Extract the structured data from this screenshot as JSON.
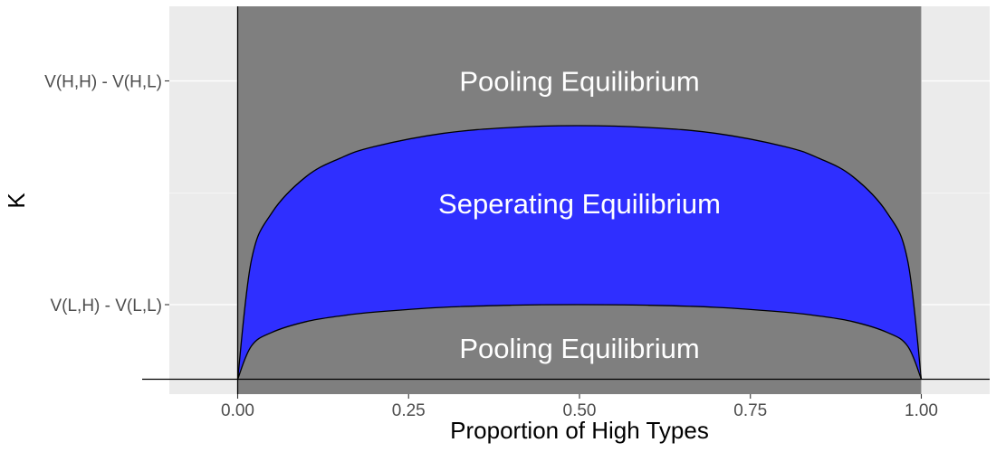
{
  "chart_data": {
    "type": "area",
    "xlabel": "Proportion of High Types",
    "ylabel": "K",
    "xlim": [
      -0.1,
      1.1
    ],
    "ylim": [
      -0.05,
      1.25
    ],
    "x_ticks": [
      {
        "value": 0.0,
        "label": "0.00"
      },
      {
        "value": 0.25,
        "label": "0.25"
      },
      {
        "value": 0.5,
        "label": "0.50"
      },
      {
        "value": 0.75,
        "label": "0.75"
      },
      {
        "value": 1.0,
        "label": "1.00"
      }
    ],
    "y_ticks": [
      {
        "value": 0.25,
        "label": "V(L,H) - V(L,L)"
      },
      {
        "value": 1.0,
        "label": "V(H,H) - V(H,L)"
      }
    ],
    "grid": true,
    "shaded_region": {
      "x": [
        0,
        1
      ],
      "color": "#7f7f7f"
    },
    "band": {
      "color": "#2f2fff",
      "x": [
        0,
        0.02,
        0.05,
        0.1,
        0.15,
        0.2,
        0.3,
        0.4,
        0.5,
        0.6,
        0.7,
        0.8,
        0.85,
        0.9,
        0.95,
        0.98,
        1.0
      ],
      "lower": [
        0,
        0.111,
        0.157,
        0.193,
        0.212,
        0.225,
        0.241,
        0.248,
        0.25,
        0.248,
        0.241,
        0.225,
        0.212,
        0.193,
        0.157,
        0.111,
        0
      ],
      "upper": [
        0,
        0.398,
        0.558,
        0.679,
        0.741,
        0.78,
        0.824,
        0.844,
        0.85,
        0.844,
        0.824,
        0.78,
        0.741,
        0.679,
        0.558,
        0.398,
        0
      ]
    },
    "annotations": [
      {
        "text": "Pooling Equilibrium",
        "x": 0.5,
        "y": 1.0
      },
      {
        "text": "Seperating Equilibrium",
        "x": 0.5,
        "y": 0.59
      },
      {
        "text": "Pooling Equilibrium",
        "x": 0.5,
        "y": 0.105
      }
    ]
  }
}
